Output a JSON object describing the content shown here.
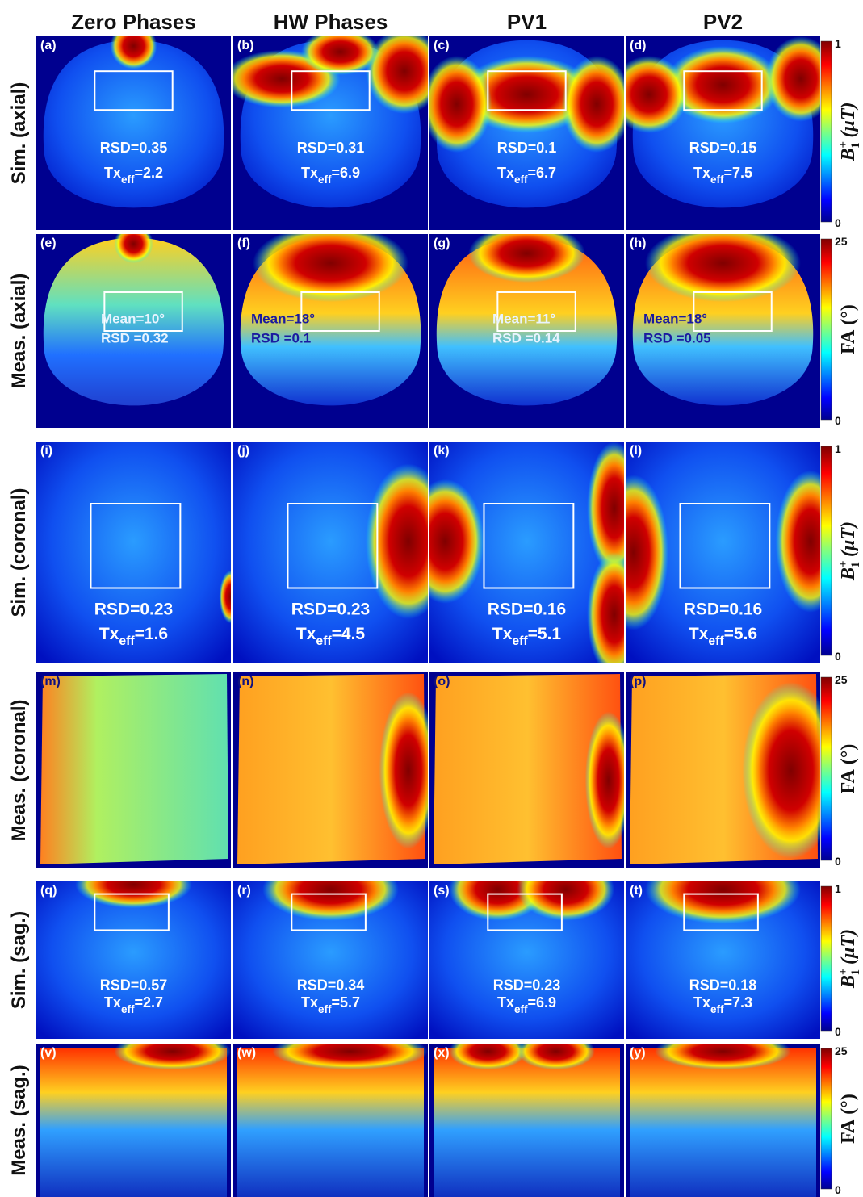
{
  "columns": [
    "Zero Phases",
    "HW Phases",
    "PV1",
    "PV2"
  ],
  "rows": [
    {
      "label": "Sim. (axial)",
      "colorbar": {
        "max": "1",
        "min": "0",
        "label": {
          "symbol": "B",
          "sup": "+",
          "sub": "1",
          "unit": "(μT)"
        }
      },
      "panels": [
        {
          "tag": "(a)",
          "rsd": "RSD=0.35",
          "tx": {
            "main": "Tx",
            "sub": "eff",
            "value": "=2.2"
          }
        },
        {
          "tag": "(b)",
          "rsd": "RSD=0.31",
          "tx": {
            "main": "Tx",
            "sub": "eff",
            "value": "=6.9"
          }
        },
        {
          "tag": "(c)",
          "rsd": "RSD=0.1",
          "tx": {
            "main": "Tx",
            "sub": "eff",
            "value": "=6.7"
          }
        },
        {
          "tag": "(d)",
          "rsd": "RSD=0.15",
          "tx": {
            "main": "Tx",
            "sub": "eff",
            "value": "=7.5"
          }
        }
      ]
    },
    {
      "label": "Meas. (axial)",
      "colorbar": {
        "max": "25",
        "min": "0",
        "label": {
          "symbol": "FA",
          "unit": "(°)"
        }
      },
      "panels": [
        {
          "tag": "(e)",
          "mean": "Mean=10°",
          "rsd": "RSD =0.32"
        },
        {
          "tag": "(f)",
          "mean": "Mean=18°",
          "rsd": "RSD =0.1"
        },
        {
          "tag": "(g)",
          "mean": "Mean=11°",
          "rsd": "RSD =0.14"
        },
        {
          "tag": "(h)",
          "mean": "Mean=18°",
          "rsd": "RSD =0.05"
        }
      ]
    },
    {
      "label": "Sim. (coronal)",
      "colorbar": {
        "max": "1",
        "min": "0",
        "label": {
          "symbol": "B",
          "sup": "+",
          "sub": "1",
          "unit": "(μT)"
        }
      },
      "panels": [
        {
          "tag": "(i)",
          "rsd": "RSD=0.23",
          "tx": {
            "main": "Tx",
            "sub": "eff",
            "value": "=1.6"
          }
        },
        {
          "tag": "(j)",
          "rsd": "RSD=0.23",
          "tx": {
            "main": "Tx",
            "sub": "eff",
            "value": "=4.5"
          }
        },
        {
          "tag": "(k)",
          "rsd": "RSD=0.16",
          "tx": {
            "main": "Tx",
            "sub": "eff",
            "value": "=5.1"
          }
        },
        {
          "tag": "(l)",
          "rsd": "RSD=0.16",
          "tx": {
            "main": "Tx",
            "sub": "eff",
            "value": "=5.6"
          }
        }
      ]
    },
    {
      "label": "Meas. (coronal)",
      "colorbar": {
        "max": "25",
        "min": "0",
        "label": {
          "symbol": "FA",
          "unit": "(°)"
        }
      },
      "panels": [
        {
          "tag": "(m)"
        },
        {
          "tag": "(n)"
        },
        {
          "tag": "(o)"
        },
        {
          "tag": "(p)"
        }
      ]
    },
    {
      "label": "Sim. (sag.)",
      "colorbar": {
        "max": "1",
        "min": "0",
        "label": {
          "symbol": "B",
          "sup": "+",
          "sub": "1",
          "unit": "(μT)"
        }
      },
      "panels": [
        {
          "tag": "(q)",
          "rsd": "RSD=0.57",
          "tx": {
            "main": "Tx",
            "sub": "eff",
            "value": "=2.7"
          }
        },
        {
          "tag": "(r)",
          "rsd": "RSD=0.34",
          "tx": {
            "main": "Tx",
            "sub": "eff",
            "value": "=5.7"
          }
        },
        {
          "tag": "(s)",
          "rsd": "RSD=0.23",
          "tx": {
            "main": "Tx",
            "sub": "eff",
            "value": "=6.9"
          }
        },
        {
          "tag": "(t)",
          "rsd": "RSD=0.18",
          "tx": {
            "main": "Tx",
            "sub": "eff",
            "value": "=7.3"
          }
        }
      ]
    },
    {
      "label": "Meas. (sag.)",
      "colorbar": {
        "max": "25",
        "min": "0",
        "label": {
          "symbol": "FA",
          "unit": "(°)"
        }
      },
      "panels": [
        {
          "tag": "(v)"
        },
        {
          "tag": "(w)"
        },
        {
          "tag": "(x)"
        },
        {
          "tag": "(y)"
        }
      ]
    }
  ]
}
